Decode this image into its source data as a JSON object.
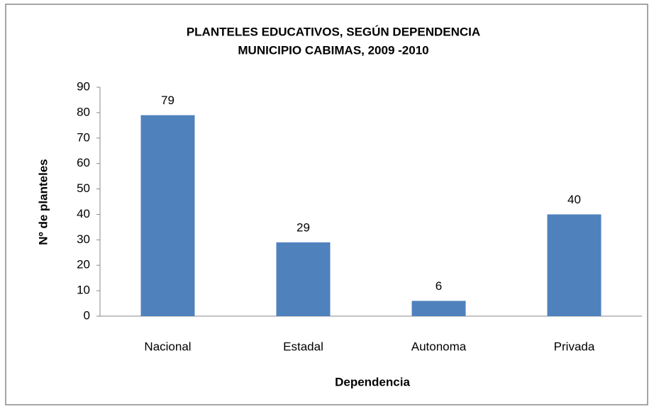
{
  "chart_data": {
    "type": "bar",
    "title": [
      "PLANTELES EDUCATIVOS, SEGÚN DEPENDENCIA",
      "MUNICIPIO CABIMAS, 2009 -2010"
    ],
    "xlabel": "Dependencia",
    "ylabel": "Nº de planteles",
    "categories": [
      "Nacional",
      "Estadal",
      "Autonoma",
      "Privada"
    ],
    "values": [
      79,
      29,
      6,
      40
    ],
    "color": "#4f81bd",
    "ylim": [
      0,
      90
    ],
    "yticks": [
      0,
      10,
      20,
      30,
      40,
      50,
      60,
      70,
      80,
      90
    ],
    "grid": false
  }
}
